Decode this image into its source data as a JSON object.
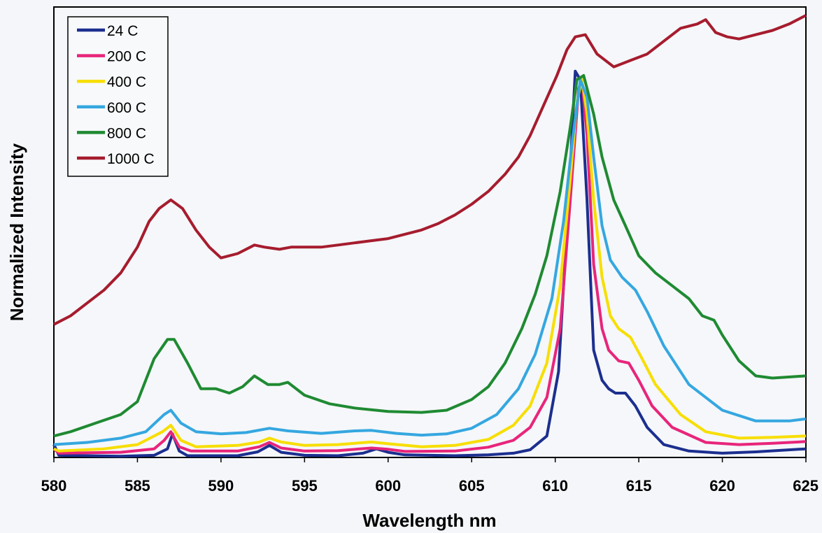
{
  "chart_data": {
    "type": "line",
    "xlabel": "Wavelength nm",
    "ylabel": "Normalized Intensity",
    "xlim": [
      580,
      625
    ],
    "ylim": [
      0,
      1
    ],
    "xticks": [
      580,
      585,
      590,
      595,
      600,
      605,
      610,
      615,
      620,
      625
    ],
    "grid": false,
    "legend_position": "top-left",
    "series": [
      {
        "name": "24 C",
        "color": "#1c2f8f",
        "points": [
          [
            580,
            0.03
          ],
          [
            580.3,
            0.005
          ],
          [
            584,
            0.003
          ],
          [
            586,
            0.005
          ],
          [
            586.8,
            0.02
          ],
          [
            587.1,
            0.055
          ],
          [
            587.5,
            0.015
          ],
          [
            588,
            0.004
          ],
          [
            591,
            0.004
          ],
          [
            592.2,
            0.013
          ],
          [
            592.9,
            0.028
          ],
          [
            593.6,
            0.012
          ],
          [
            595,
            0.005
          ],
          [
            597,
            0.004
          ],
          [
            598.5,
            0.01
          ],
          [
            599.3,
            0.02
          ],
          [
            600,
            0.012
          ],
          [
            601,
            0.006
          ],
          [
            604,
            0.004
          ],
          [
            606,
            0.006
          ],
          [
            607.5,
            0.01
          ],
          [
            608.5,
            0.018
          ],
          [
            609.5,
            0.05
          ],
          [
            610.2,
            0.2
          ],
          [
            610.8,
            0.6
          ],
          [
            611.2,
            0.9
          ],
          [
            611.5,
            0.88
          ],
          [
            611.9,
            0.6
          ],
          [
            612.3,
            0.25
          ],
          [
            612.8,
            0.18
          ],
          [
            613.2,
            0.16
          ],
          [
            613.6,
            0.15
          ],
          [
            614.2,
            0.15
          ],
          [
            614.8,
            0.12
          ],
          [
            615.5,
            0.07
          ],
          [
            616.5,
            0.03
          ],
          [
            618,
            0.015
          ],
          [
            620,
            0.01
          ],
          [
            622,
            0.013
          ],
          [
            625,
            0.02
          ]
        ]
      },
      {
        "name": "200 C",
        "color": "#e8257b",
        "points": [
          [
            580,
            0.02
          ],
          [
            580.3,
            0.01
          ],
          [
            584,
            0.012
          ],
          [
            586,
            0.02
          ],
          [
            586.6,
            0.04
          ],
          [
            587,
            0.06
          ],
          [
            587.5,
            0.025
          ],
          [
            588.2,
            0.015
          ],
          [
            591,
            0.015
          ],
          [
            592.3,
            0.025
          ],
          [
            592.9,
            0.035
          ],
          [
            593.6,
            0.022
          ],
          [
            595,
            0.015
          ],
          [
            597,
            0.016
          ],
          [
            599,
            0.022
          ],
          [
            600,
            0.019
          ],
          [
            601,
            0.014
          ],
          [
            604,
            0.015
          ],
          [
            606,
            0.024
          ],
          [
            607.5,
            0.04
          ],
          [
            608.5,
            0.07
          ],
          [
            609.5,
            0.14
          ],
          [
            610.3,
            0.3
          ],
          [
            610.9,
            0.6
          ],
          [
            611.4,
            0.86
          ],
          [
            611.6,
            0.88
          ],
          [
            611.9,
            0.75
          ],
          [
            612.3,
            0.45
          ],
          [
            612.8,
            0.3
          ],
          [
            613.2,
            0.25
          ],
          [
            613.8,
            0.225
          ],
          [
            614.4,
            0.22
          ],
          [
            615,
            0.18
          ],
          [
            615.8,
            0.12
          ],
          [
            617,
            0.07
          ],
          [
            619,
            0.035
          ],
          [
            621,
            0.03
          ],
          [
            623,
            0.033
          ],
          [
            625,
            0.037
          ]
        ]
      },
      {
        "name": "400 C",
        "color": "#f7de00",
        "points": [
          [
            580,
            0.02
          ],
          [
            580.3,
            0.015
          ],
          [
            583,
            0.02
          ],
          [
            585,
            0.03
          ],
          [
            586.5,
            0.06
          ],
          [
            587,
            0.075
          ],
          [
            587.6,
            0.04
          ],
          [
            588.5,
            0.025
          ],
          [
            591,
            0.028
          ],
          [
            592.3,
            0.036
          ],
          [
            592.9,
            0.045
          ],
          [
            593.6,
            0.036
          ],
          [
            595,
            0.028
          ],
          [
            597,
            0.03
          ],
          [
            599,
            0.036
          ],
          [
            600,
            0.032
          ],
          [
            602,
            0.025
          ],
          [
            604,
            0.028
          ],
          [
            606,
            0.042
          ],
          [
            607.5,
            0.075
          ],
          [
            608.5,
            0.12
          ],
          [
            609.5,
            0.22
          ],
          [
            610.3,
            0.4
          ],
          [
            610.9,
            0.65
          ],
          [
            611.3,
            0.83
          ],
          [
            611.6,
            0.88
          ],
          [
            611.9,
            0.8
          ],
          [
            612.3,
            0.6
          ],
          [
            612.8,
            0.42
          ],
          [
            613.3,
            0.33
          ],
          [
            613.8,
            0.3
          ],
          [
            614.5,
            0.28
          ],
          [
            615.2,
            0.23
          ],
          [
            616,
            0.17
          ],
          [
            617.5,
            0.1
          ],
          [
            619,
            0.06
          ],
          [
            621,
            0.045
          ],
          [
            623,
            0.047
          ],
          [
            625,
            0.05
          ]
        ]
      },
      {
        "name": "600 C",
        "color": "#35a7e0",
        "points": [
          [
            580,
            0.03
          ],
          [
            582,
            0.035
          ],
          [
            584,
            0.045
          ],
          [
            585.5,
            0.06
          ],
          [
            586.6,
            0.1
          ],
          [
            587,
            0.11
          ],
          [
            587.6,
            0.08
          ],
          [
            588.5,
            0.06
          ],
          [
            590,
            0.055
          ],
          [
            591.5,
            0.058
          ],
          [
            592.9,
            0.068
          ],
          [
            594,
            0.062
          ],
          [
            596,
            0.056
          ],
          [
            598,
            0.062
          ],
          [
            599,
            0.063
          ],
          [
            600.5,
            0.056
          ],
          [
            602,
            0.052
          ],
          [
            603.5,
            0.055
          ],
          [
            605,
            0.068
          ],
          [
            606.5,
            0.1
          ],
          [
            607.8,
            0.16
          ],
          [
            608.8,
            0.24
          ],
          [
            609.8,
            0.37
          ],
          [
            610.5,
            0.55
          ],
          [
            611,
            0.73
          ],
          [
            611.5,
            0.88
          ],
          [
            611.9,
            0.84
          ],
          [
            612.3,
            0.7
          ],
          [
            612.8,
            0.54
          ],
          [
            613.3,
            0.46
          ],
          [
            614,
            0.42
          ],
          [
            614.8,
            0.39
          ],
          [
            615.5,
            0.34
          ],
          [
            616.5,
            0.26
          ],
          [
            618,
            0.17
          ],
          [
            620,
            0.11
          ],
          [
            622,
            0.085
          ],
          [
            624,
            0.085
          ],
          [
            625,
            0.09
          ]
        ]
      },
      {
        "name": "800 C",
        "color": "#1f8a32",
        "points": [
          [
            580,
            0.05
          ],
          [
            581,
            0.06
          ],
          [
            582.5,
            0.08
          ],
          [
            584,
            0.1
          ],
          [
            585,
            0.13
          ],
          [
            586,
            0.23
          ],
          [
            586.8,
            0.275
          ],
          [
            587.2,
            0.275
          ],
          [
            588,
            0.22
          ],
          [
            588.8,
            0.16
          ],
          [
            589.7,
            0.16
          ],
          [
            590.5,
            0.15
          ],
          [
            591.3,
            0.165
          ],
          [
            592,
            0.19
          ],
          [
            592.8,
            0.17
          ],
          [
            593.5,
            0.17
          ],
          [
            594,
            0.175
          ],
          [
            595,
            0.145
          ],
          [
            596.5,
            0.125
          ],
          [
            598,
            0.115
          ],
          [
            600,
            0.107
          ],
          [
            602,
            0.105
          ],
          [
            603.5,
            0.11
          ],
          [
            605,
            0.135
          ],
          [
            606,
            0.165
          ],
          [
            607,
            0.22
          ],
          [
            608,
            0.3
          ],
          [
            608.8,
            0.38
          ],
          [
            609.5,
            0.47
          ],
          [
            610.3,
            0.62
          ],
          [
            610.9,
            0.77
          ],
          [
            611.3,
            0.88
          ],
          [
            611.7,
            0.89
          ],
          [
            612.3,
            0.8
          ],
          [
            612.8,
            0.7
          ],
          [
            613.5,
            0.6
          ],
          [
            614.2,
            0.54
          ],
          [
            615,
            0.47
          ],
          [
            616,
            0.43
          ],
          [
            617,
            0.4
          ],
          [
            618,
            0.37
          ],
          [
            618.8,
            0.33
          ],
          [
            619.5,
            0.32
          ],
          [
            620,
            0.285
          ],
          [
            621,
            0.225
          ],
          [
            622,
            0.19
          ],
          [
            623,
            0.185
          ],
          [
            625,
            0.19
          ]
        ]
      },
      {
        "name": "1000 C",
        "color": "#a61c2e",
        "points": [
          [
            580,
            0.31
          ],
          [
            581,
            0.33
          ],
          [
            582,
            0.36
          ],
          [
            583,
            0.39
          ],
          [
            584,
            0.43
          ],
          [
            585,
            0.49
          ],
          [
            585.7,
            0.55
          ],
          [
            586.3,
            0.58
          ],
          [
            587,
            0.6
          ],
          [
            587.7,
            0.58
          ],
          [
            588.5,
            0.53
          ],
          [
            589.3,
            0.49
          ],
          [
            590,
            0.465
          ],
          [
            591,
            0.475
          ],
          [
            592,
            0.495
          ],
          [
            592.6,
            0.49
          ],
          [
            593.5,
            0.485
          ],
          [
            594.2,
            0.49
          ],
          [
            595,
            0.49
          ],
          [
            596,
            0.49
          ],
          [
            597,
            0.495
          ],
          [
            598,
            0.5
          ],
          [
            599,
            0.505
          ],
          [
            600,
            0.51
          ],
          [
            601,
            0.52
          ],
          [
            602,
            0.53
          ],
          [
            603,
            0.545
          ],
          [
            604,
            0.565
          ],
          [
            605,
            0.59
          ],
          [
            606,
            0.62
          ],
          [
            607,
            0.66
          ],
          [
            607.8,
            0.7
          ],
          [
            608.5,
            0.75
          ],
          [
            609.3,
            0.82
          ],
          [
            610.1,
            0.89
          ],
          [
            610.7,
            0.95
          ],
          [
            611.2,
            0.98
          ],
          [
            611.8,
            0.985
          ],
          [
            612.5,
            0.94
          ],
          [
            613.5,
            0.91
          ],
          [
            614.5,
            0.925
          ],
          [
            615.5,
            0.94
          ],
          [
            616.5,
            0.97
          ],
          [
            617.5,
            1.0
          ],
          [
            618.5,
            1.01
          ],
          [
            619,
            1.02
          ],
          [
            619.6,
            0.99
          ],
          [
            620.3,
            0.98
          ],
          [
            621,
            0.975
          ],
          [
            622,
            0.985
          ],
          [
            623,
            0.995
          ],
          [
            624,
            1.01
          ],
          [
            625,
            1.03
          ]
        ]
      }
    ]
  }
}
